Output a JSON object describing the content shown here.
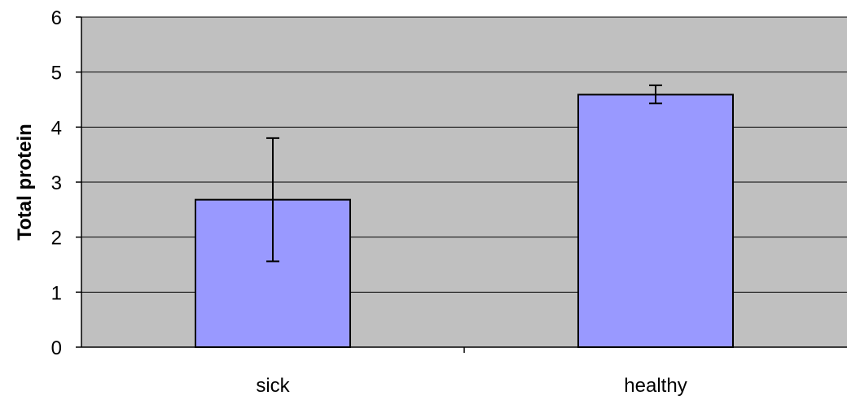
{
  "chart_data": {
    "type": "bar",
    "title": "",
    "xlabel": "",
    "ylabel": "Total protein",
    "categories": [
      "sick",
      "healthy"
    ],
    "values": [
      2.68,
      4.59
    ],
    "error_bars": [
      {
        "low": 1.56,
        "high": 3.8
      },
      {
        "low": 4.43,
        "high": 4.76
      }
    ],
    "ylim": [
      0,
      6
    ],
    "yticks": [
      "0",
      "1",
      "2",
      "3",
      "4",
      "5",
      "6"
    ],
    "grid": true,
    "legend": "none",
    "colors": {
      "bar_fill": "#9999ff",
      "bar_stroke": "#000000",
      "plot_background": "#c0c0c0",
      "gridline": "#000000"
    }
  }
}
